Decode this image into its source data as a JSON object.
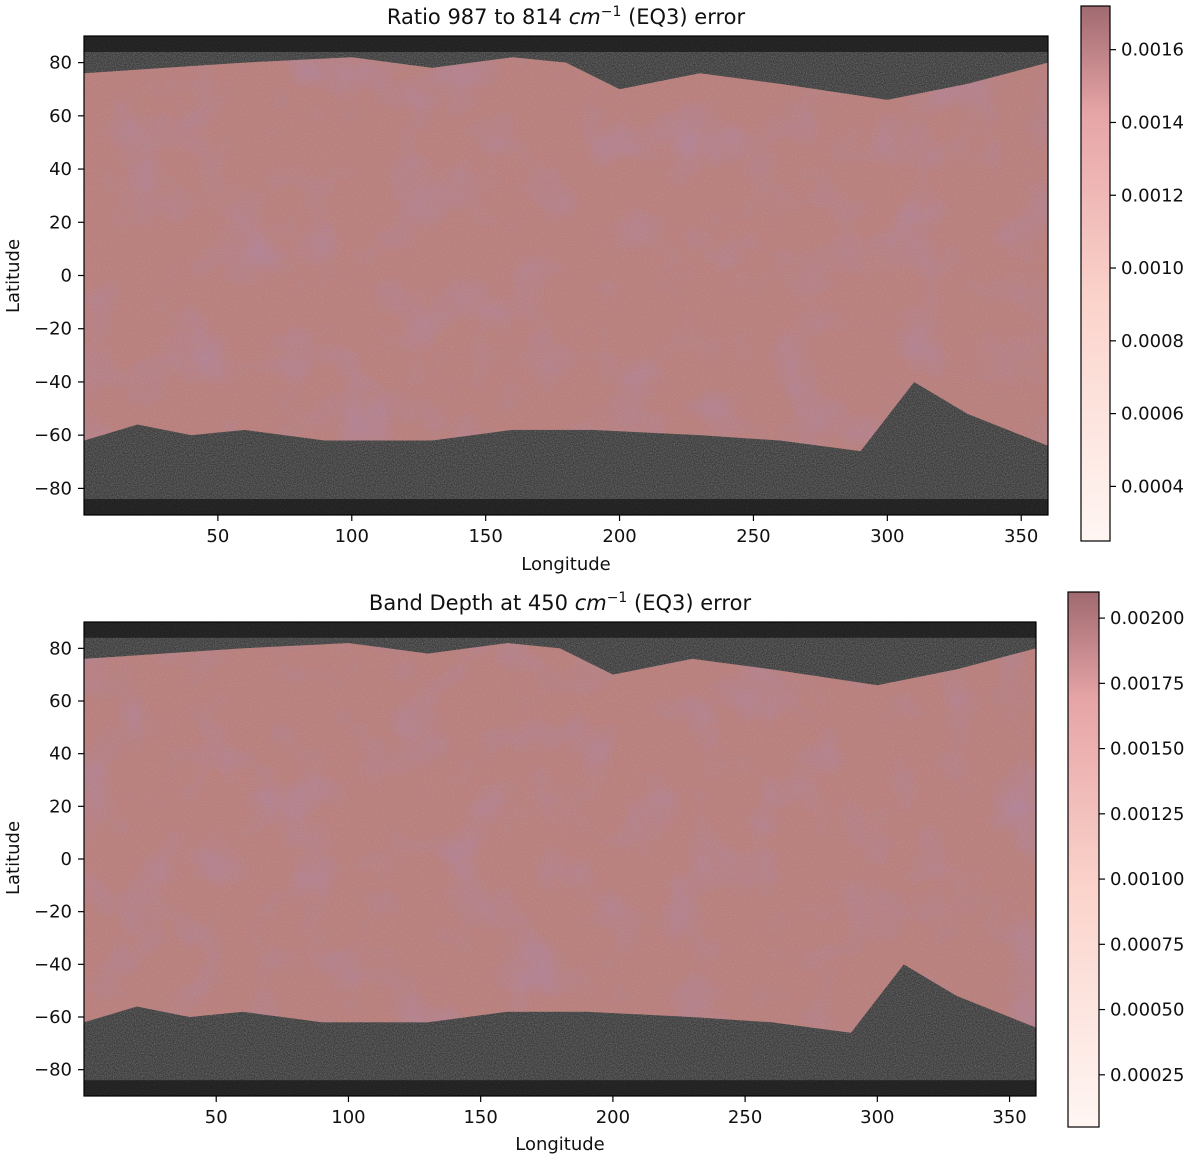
{
  "figure": {
    "panels": [
      {
        "title_main": "Ratio 987 to 814 ",
        "title_unit": "cm",
        "title_sup": "−1",
        "title_tail": " (EQ3) error",
        "xlabel": "Longitude",
        "ylabel": "Latitude",
        "colorbar_ticks": [
          "0.0016",
          "0.0014",
          "0.0012",
          "0.0010",
          "0.0008",
          "0.0006",
          "0.0004"
        ]
      },
      {
        "title_main": "Band Depth at 450 ",
        "title_unit": "cm",
        "title_sup": "−1",
        "title_tail": " (EQ3) error",
        "xlabel": "Longitude",
        "ylabel": "Latitude",
        "colorbar_ticks": [
          "0.00200",
          "0.00175",
          "0.00150",
          "0.00125",
          "0.00100",
          "0.00075",
          "0.00050",
          "0.00025"
        ]
      }
    ],
    "colors": {
      "overlay": "#b34a4a",
      "basemap": "#3a3a3a",
      "colorbar_top": "#a06a70",
      "colorbar_bottom": "#fff6f3"
    }
  },
  "chart_data": [
    {
      "type": "heatmap",
      "title": "Ratio 987 to 814 cm−1 (EQ3) error",
      "xlabel": "Longitude",
      "ylabel": "Latitude",
      "xlim": [
        0,
        360
      ],
      "ylim": [
        -90,
        90
      ],
      "xticks": [
        50,
        100,
        150,
        200,
        250,
        300,
        350
      ],
      "yticks": [
        80,
        60,
        40,
        20,
        0,
        -20,
        -40,
        -60,
        -80
      ],
      "colorbar": {
        "range": [
          0.00025,
          0.00172
        ],
        "ticks": [
          0.0016,
          0.0014,
          0.0012,
          0.001,
          0.0008,
          0.0006,
          0.0004
        ]
      },
      "coverage_boundary_north": [
        [
          0,
          76
        ],
        [
          30,
          78
        ],
        [
          60,
          80
        ],
        [
          100,
          82
        ],
        [
          130,
          78
        ],
        [
          160,
          82
        ],
        [
          180,
          80
        ],
        [
          200,
          70
        ],
        [
          230,
          76
        ],
        [
          260,
          72
        ],
        [
          300,
          66
        ],
        [
          330,
          72
        ],
        [
          360,
          80
        ]
      ],
      "coverage_boundary_south": [
        [
          0,
          -62
        ],
        [
          20,
          -56
        ],
        [
          40,
          -60
        ],
        [
          60,
          -58
        ],
        [
          90,
          -62
        ],
        [
          130,
          -62
        ],
        [
          160,
          -58
        ],
        [
          190,
          -58
        ],
        [
          230,
          -60
        ],
        [
          260,
          -62
        ],
        [
          290,
          -66
        ],
        [
          310,
          -40
        ],
        [
          330,
          -52
        ],
        [
          360,
          -64
        ]
      ]
    },
    {
      "type": "heatmap",
      "title": "Band Depth at 450 cm−1 (EQ3) error",
      "xlabel": "Longitude",
      "ylabel": "Latitude",
      "xlim": [
        0,
        360
      ],
      "ylim": [
        -90,
        90
      ],
      "xticks": [
        50,
        100,
        150,
        200,
        250,
        300,
        350
      ],
      "yticks": [
        80,
        60,
        40,
        20,
        0,
        -20,
        -40,
        -60,
        -80
      ],
      "colorbar": {
        "range": [
          5e-05,
          0.0021
        ],
        "ticks": [
          0.002,
          0.00175,
          0.0015,
          0.00125,
          0.001,
          0.00075,
          0.0005,
          0.00025
        ]
      },
      "coverage_boundary_north": [
        [
          0,
          76
        ],
        [
          30,
          78
        ],
        [
          60,
          80
        ],
        [
          100,
          82
        ],
        [
          130,
          78
        ],
        [
          160,
          82
        ],
        [
          180,
          80
        ],
        [
          200,
          70
        ],
        [
          230,
          76
        ],
        [
          260,
          72
        ],
        [
          300,
          66
        ],
        [
          330,
          72
        ],
        [
          360,
          80
        ]
      ],
      "coverage_boundary_south": [
        [
          0,
          -62
        ],
        [
          20,
          -56
        ],
        [
          40,
          -60
        ],
        [
          60,
          -58
        ],
        [
          90,
          -62
        ],
        [
          130,
          -62
        ],
        [
          160,
          -58
        ],
        [
          190,
          -58
        ],
        [
          230,
          -60
        ],
        [
          260,
          -62
        ],
        [
          290,
          -66
        ],
        [
          310,
          -40
        ],
        [
          330,
          -52
        ],
        [
          360,
          -64
        ]
      ]
    }
  ]
}
